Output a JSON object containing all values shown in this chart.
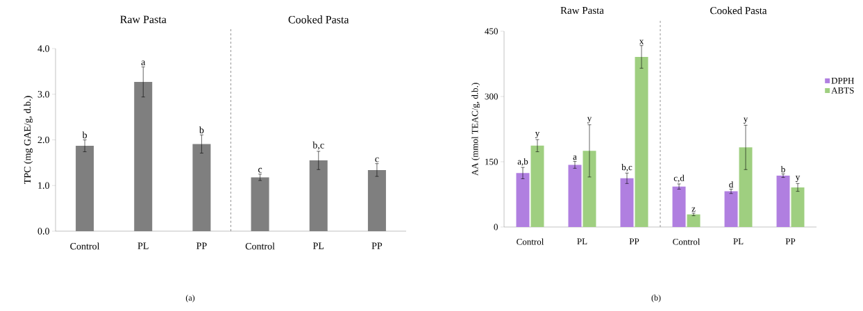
{
  "chart_data": [
    {
      "type": "bar",
      "categories": [
        "Control",
        "PL",
        "PP",
        "Control",
        "PL",
        "PP"
      ],
      "values": [
        1.87,
        3.27,
        1.91,
        1.18,
        1.55,
        1.34
      ],
      "errors": [
        0.13,
        0.33,
        0.2,
        0.07,
        0.2,
        0.14
      ],
      "value_labels": [
        "b",
        "a",
        "b",
        "c",
        "b,c",
        "c"
      ],
      "color": "#7f7f7f",
      "ylabel": "TPC (mg GAE/g, d.b.)",
      "ylim": [
        0,
        4
      ],
      "yticks": [
        {
          "value": 0,
          "label": "0.0"
        },
        {
          "value": 1,
          "label": "1.0"
        },
        {
          "value": 2,
          "label": "2.0"
        },
        {
          "value": 3,
          "label": "3.0"
        },
        {
          "value": 4,
          "label": "4.0"
        }
      ],
      "annotations": [
        "Raw Pasta",
        "Cooked Pasta",
        "(a)"
      ]
    },
    {
      "type": "bar",
      "categories": [
        "Control",
        "PL",
        "PP",
        "Control",
        "PL",
        "PP"
      ],
      "series": [
        {
          "name": "DPPH",
          "color": "#b07fe0",
          "values": [
            124,
            143,
            112,
            93,
            82,
            118
          ],
          "errors": [
            13,
            8,
            12,
            6,
            5,
            4
          ],
          "value_labels": [
            "a,b",
            "a",
            "b,c",
            "c,d",
            "d",
            "b"
          ]
        },
        {
          "name": "ABTS",
          "color": "#9fcf80",
          "values": [
            187,
            175,
            391,
            29,
            183,
            91
          ],
          "errors": [
            14,
            60,
            26,
            3,
            51,
            9
          ],
          "value_labels": [
            "y",
            "y",
            "x",
            "z",
            "y",
            "y"
          ]
        }
      ],
      "ylabel": "AA (mmol TEAC/g, d.b.)",
      "ylim": [
        0,
        450
      ],
      "yticks": [
        0,
        150,
        300,
        450
      ],
      "legend": "right",
      "annotations": [
        "Raw Pasta",
        "Cooked Pasta",
        "(b)"
      ]
    }
  ]
}
